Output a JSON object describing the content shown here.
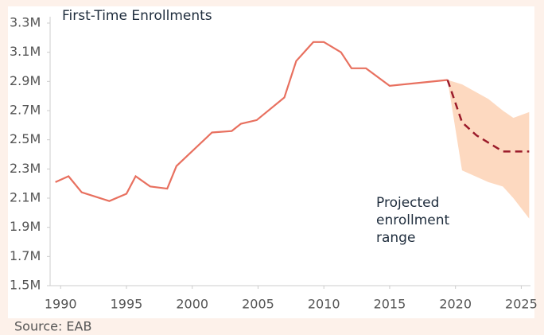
{
  "chart_data": {
    "type": "line",
    "title": "First-Time Enrollments",
    "source": "Source: EAB",
    "annotation": [
      "Projected",
      "enrollment",
      "range"
    ],
    "xlim": [
      1989.2,
      2025.7
    ],
    "xticks": [
      1990,
      1995,
      2000,
      2005,
      2010,
      2015,
      2020,
      2025
    ],
    "ylim": [
      1.5,
      3.3
    ],
    "yticks": [
      {
        "value": 1.5,
        "label": "1.5M"
      },
      {
        "value": 1.7,
        "label": "1.7M"
      },
      {
        "value": 1.9,
        "label": "1.9M"
      },
      {
        "value": 2.1,
        "label": "2.1M"
      },
      {
        "value": 2.3,
        "label": "2.3M"
      },
      {
        "value": 2.5,
        "label": "2.5M"
      },
      {
        "value": 2.7,
        "label": "2.7M"
      },
      {
        "value": 2.9,
        "label": "2.9M"
      },
      {
        "value": 3.1,
        "label": "3.1M"
      },
      {
        "value": 3.3,
        "label": "3.3M"
      }
    ],
    "series": [
      {
        "color": "#e8705f",
        "dashed": false,
        "x": [
          1989.6,
          1990.6,
          1991.6,
          1993.7,
          1995.0,
          1995.7,
          1996.8,
          1998.1,
          1998.8,
          2001.5,
          2003.0,
          2003.7,
          2004.9,
          2007.0,
          2007.9,
          2009.2,
          2010.0,
          2011.3,
          2012.1,
          2013.2,
          2015.0,
          2019.4
        ],
        "values": [
          2.21,
          2.25,
          2.14,
          2.08,
          2.13,
          2.25,
          2.18,
          2.165,
          2.32,
          2.55,
          2.56,
          2.61,
          2.635,
          2.79,
          3.04,
          3.17,
          3.17,
          3.1,
          2.99,
          2.99,
          2.87,
          2.91
        ]
      },
      {
        "color": "#9b1b2a",
        "dashed": true,
        "x": [
          2019.4,
          2020.5,
          2021.6,
          2023.6,
          2025.6
        ],
        "values": [
          2.91,
          2.62,
          2.53,
          2.42,
          2.42
        ]
      }
    ],
    "range": {
      "color": "#fdd9c0",
      "x": [
        2019.4,
        2020.5,
        2022.5,
        2023.6,
        2024.4,
        2025.6
      ],
      "upper": [
        2.91,
        2.88,
        2.78,
        2.7,
        2.65,
        2.69
      ],
      "lower": [
        2.91,
        2.29,
        2.21,
        2.18,
        2.1,
        1.96
      ]
    }
  }
}
